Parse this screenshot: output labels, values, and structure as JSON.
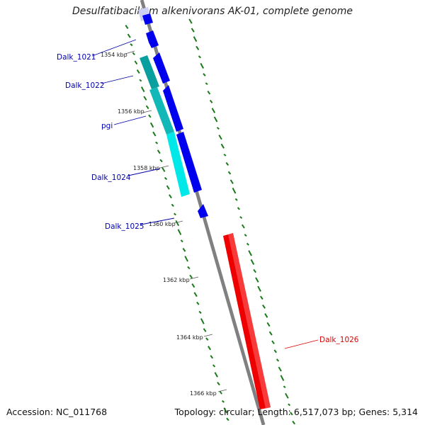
{
  "title": "Desulfatibacillum alkenivorans AK-01, complete genome",
  "footer": {
    "accession": "Accession: NC_011768",
    "summary": "Topology: circular; Length: 6,517,073 bp; Genes: 5,314"
  },
  "ticks": [
    {
      "label": "1354 kbp"
    },
    {
      "label": "1356 kbp"
    },
    {
      "label": "1358 kbp"
    },
    {
      "label": "1360 kbp"
    },
    {
      "label": "1362 kbp"
    },
    {
      "label": "1364 kbp"
    },
    {
      "label": "1366 kbp"
    }
  ],
  "genes": [
    {
      "label": "Dalk_1021",
      "color": "#0000aa"
    },
    {
      "label": "Dalk_1022",
      "color": "#0000aa"
    },
    {
      "label": "pgi",
      "color": "#0000aa"
    },
    {
      "label": "Dalk_1024",
      "color": "#0000aa"
    },
    {
      "label": "Dalk_1025",
      "color": "#0000aa"
    },
    {
      "label": "Dalk_1026",
      "color": "#dd0000"
    }
  ],
  "colors": {
    "forward_gene": "#0000ee",
    "reverse_gene": "#ee0000",
    "cds_cyan": "#00e5e5",
    "backbone": "#808080",
    "gc_dash": "#1a7a1a"
  }
}
